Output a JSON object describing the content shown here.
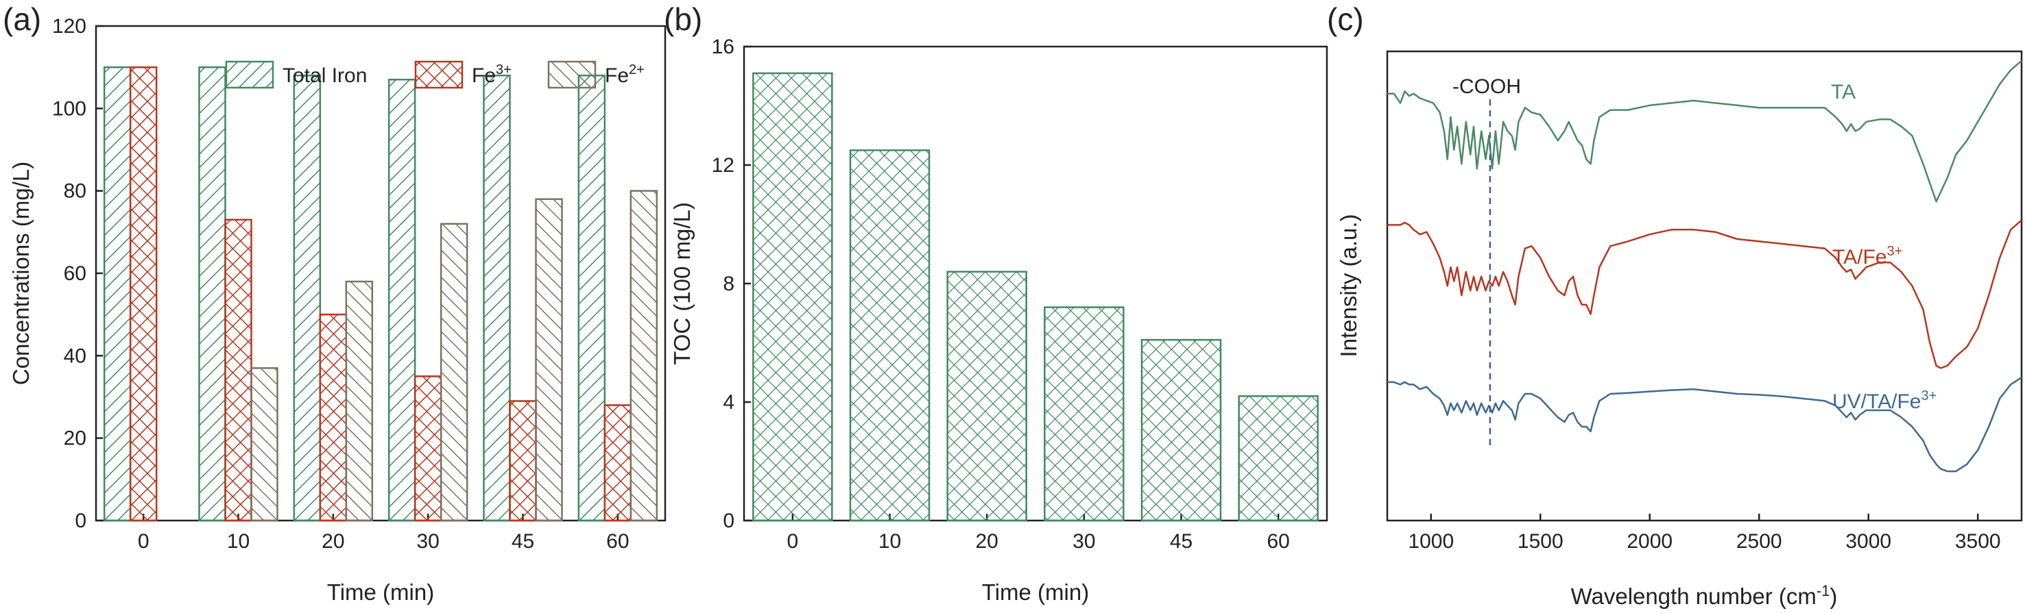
{
  "colors": {
    "total_iron": "#3f8a62",
    "fe3": "#b5381f",
    "fe2": "#7d725f",
    "toc": "#3f8a62",
    "spec_ta": "#4a8a66",
    "spec_ta_fe3": "#b5381f",
    "spec_uv": "#3c6a92",
    "dash": "#45608a"
  },
  "chart_data": [
    {
      "panel": "(a)",
      "type": "bar",
      "xlabel": "Time (min)",
      "ylabel": "Concentrations (mg/L)",
      "ylim": [
        0,
        120
      ],
      "yticks": [
        0,
        20,
        40,
        60,
        80,
        100,
        120
      ],
      "categories": [
        "0",
        "10",
        "20",
        "30",
        "45",
        "60"
      ],
      "legend_placement": "top",
      "series": [
        {
          "name": "Total Iron",
          "key": "total_iron",
          "values": [
            110,
            110,
            108,
            107,
            108,
            108
          ]
        },
        {
          "name": "Fe3+",
          "name_base": "Fe",
          "name_sup": "3+",
          "key": "fe3",
          "values": [
            110,
            73,
            50,
            35,
            29,
            28
          ]
        },
        {
          "name": "Fe2+",
          "name_base": "Fe",
          "name_sup": "2+",
          "key": "fe2",
          "values": [
            null,
            37,
            58,
            72,
            78,
            80
          ]
        }
      ]
    },
    {
      "panel": "(b)",
      "type": "bar",
      "xlabel": "Time (min)",
      "ylabel": "TOC (100 mg/L)",
      "ylim": [
        0,
        16
      ],
      "yticks": [
        0,
        4,
        8,
        12,
        16
      ],
      "categories": [
        "0",
        "10",
        "20",
        "30",
        "45",
        "60"
      ],
      "values": [
        15.1,
        12.5,
        8.4,
        7.2,
        6.1,
        4.2
      ]
    },
    {
      "panel": "(c)",
      "type": "line",
      "xlabel_base": "Wavelength number (cm",
      "xlabel_sup": "-1",
      "xlabel_tail": ")",
      "ylabel": "Intensity (a.u.)",
      "xlim": [
        800,
        3700
      ],
      "xticks": [
        1000,
        1500,
        2000,
        2500,
        3000,
        3500
      ],
      "ylim": [
        0,
        10
      ],
      "yticks_shown": false,
      "annotation": {
        "text": "-COOH",
        "x": 1270
      },
      "series": [
        {
          "name": "TA",
          "key": "spec_ta",
          "x": [
            800,
            830,
            860,
            880,
            900,
            920,
            950,
            980,
            1010,
            1040,
            1060,
            1075,
            1090,
            1105,
            1120,
            1140,
            1160,
            1180,
            1195,
            1210,
            1230,
            1250,
            1265,
            1280,
            1295,
            1310,
            1330,
            1350,
            1370,
            1385,
            1400,
            1430,
            1460,
            1500,
            1540,
            1580,
            1610,
            1630,
            1650,
            1670,
            1690,
            1710,
            1730,
            1745,
            1770,
            1820,
            1900,
            2000,
            2100,
            2200,
            2300,
            2400,
            2500,
            2600,
            2700,
            2800,
            2850,
            2880,
            2900,
            2920,
            2940,
            2960,
            2990,
            3050,
            3100,
            3150,
            3200,
            3250,
            3280,
            3310,
            3330,
            3360,
            3400,
            3450,
            3500,
            3550,
            3600,
            3650,
            3700
          ],
          "y": [
            9.1,
            9.1,
            8.9,
            9.15,
            9.05,
            9.1,
            9.0,
            8.95,
            8.9,
            8.7,
            8.3,
            7.7,
            8.6,
            7.9,
            8.4,
            7.6,
            8.5,
            7.8,
            8.4,
            7.5,
            8.3,
            7.7,
            8.2,
            7.5,
            8.3,
            7.6,
            8.5,
            8.3,
            8.2,
            7.9,
            8.5,
            8.8,
            8.7,
            8.65,
            8.4,
            8.1,
            8.3,
            8.5,
            8.3,
            8.1,
            8.0,
            7.7,
            7.6,
            8.1,
            8.6,
            8.75,
            8.75,
            8.85,
            8.9,
            8.95,
            8.9,
            8.85,
            8.8,
            8.8,
            8.8,
            8.8,
            8.6,
            8.45,
            8.3,
            8.45,
            8.3,
            8.35,
            8.5,
            8.55,
            8.55,
            8.4,
            8.2,
            7.6,
            7.2,
            6.8,
            7.0,
            7.3,
            7.8,
            8.1,
            8.5,
            8.9,
            9.3,
            9.6,
            9.8
          ]
        },
        {
          "name": "TA/Fe3+",
          "name_base": "TA/Fe",
          "name_sup": "3+",
          "key": "spec_ta_fe3",
          "x": [
            800,
            830,
            860,
            880,
            900,
            920,
            950,
            980,
            1010,
            1040,
            1060,
            1075,
            1090,
            1105,
            1120,
            1140,
            1160,
            1180,
            1195,
            1210,
            1230,
            1250,
            1265,
            1280,
            1295,
            1310,
            1330,
            1350,
            1370,
            1385,
            1400,
            1430,
            1460,
            1500,
            1540,
            1580,
            1610,
            1630,
            1650,
            1670,
            1690,
            1710,
            1730,
            1745,
            1770,
            1820,
            1900,
            2000,
            2100,
            2200,
            2300,
            2400,
            2500,
            2600,
            2700,
            2800,
            2850,
            2880,
            2900,
            2920,
            2940,
            2960,
            2990,
            3050,
            3100,
            3150,
            3200,
            3250,
            3280,
            3310,
            3330,
            3360,
            3400,
            3450,
            3500,
            3550,
            3600,
            3650,
            3700
          ],
          "y": [
            6.3,
            6.3,
            6.3,
            6.35,
            6.3,
            6.2,
            6.1,
            6.15,
            5.9,
            5.6,
            5.3,
            5.0,
            5.4,
            5.1,
            5.4,
            4.8,
            5.3,
            4.9,
            5.2,
            4.9,
            5.2,
            4.9,
            5.1,
            5.0,
            5.2,
            5.0,
            5.3,
            5.1,
            4.8,
            4.6,
            5.2,
            5.8,
            5.85,
            5.6,
            5.2,
            4.9,
            4.8,
            5.1,
            5.2,
            4.8,
            4.6,
            4.6,
            4.4,
            4.8,
            5.4,
            5.85,
            5.95,
            6.1,
            6.2,
            6.2,
            6.15,
            6.0,
            5.95,
            5.9,
            5.85,
            5.8,
            5.6,
            5.4,
            5.3,
            5.35,
            5.15,
            5.25,
            5.4,
            5.5,
            5.5,
            5.3,
            5.0,
            4.5,
            3.8,
            3.3,
            3.25,
            3.3,
            3.5,
            3.7,
            4.1,
            4.8,
            5.6,
            6.2,
            6.4
          ]
        },
        {
          "name": "UV/TA/Fe3+",
          "name_base": "UV/TA/Fe",
          "name_sup": "3+",
          "key": "spec_uv",
          "x": [
            800,
            830,
            860,
            880,
            900,
            920,
            950,
            980,
            1010,
            1040,
            1060,
            1075,
            1090,
            1105,
            1120,
            1140,
            1160,
            1180,
            1195,
            1210,
            1230,
            1250,
            1265,
            1280,
            1295,
            1310,
            1330,
            1350,
            1370,
            1385,
            1400,
            1430,
            1460,
            1500,
            1540,
            1580,
            1610,
            1630,
            1650,
            1670,
            1690,
            1710,
            1730,
            1745,
            1770,
            1820,
            1900,
            2000,
            2100,
            2200,
            2300,
            2400,
            2500,
            2600,
            2700,
            2800,
            2850,
            2880,
            2900,
            2920,
            2940,
            2960,
            2990,
            3050,
            3100,
            3150,
            3200,
            3250,
            3280,
            3310,
            3330,
            3360,
            3400,
            3450,
            3500,
            3550,
            3600,
            3650,
            3700
          ],
          "y": [
            2.95,
            2.95,
            2.9,
            2.95,
            2.9,
            2.9,
            2.8,
            2.85,
            2.7,
            2.6,
            2.45,
            2.25,
            2.5,
            2.35,
            2.5,
            2.3,
            2.55,
            2.35,
            2.5,
            2.25,
            2.5,
            2.3,
            2.45,
            2.3,
            2.5,
            2.35,
            2.55,
            2.45,
            2.35,
            2.15,
            2.5,
            2.7,
            2.7,
            2.6,
            2.4,
            2.2,
            2.1,
            2.25,
            2.3,
            2.1,
            2.0,
            2.0,
            1.9,
            2.2,
            2.55,
            2.7,
            2.72,
            2.75,
            2.78,
            2.8,
            2.75,
            2.7,
            2.68,
            2.65,
            2.6,
            2.55,
            2.45,
            2.3,
            2.2,
            2.3,
            2.15,
            2.25,
            2.35,
            2.35,
            2.35,
            2.2,
            2.0,
            1.7,
            1.4,
            1.2,
            1.1,
            1.05,
            1.05,
            1.2,
            1.5,
            2.0,
            2.6,
            2.9,
            3.05
          ]
        }
      ]
    }
  ]
}
